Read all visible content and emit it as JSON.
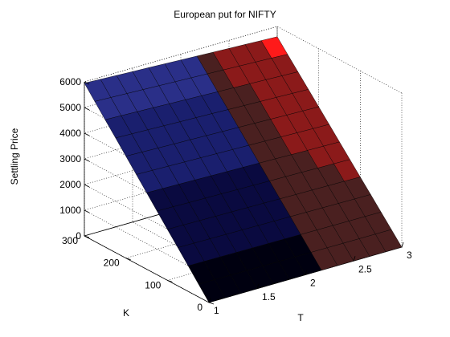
{
  "chart_data": {
    "type": "surface3d",
    "title": "European put for NIFTY",
    "zlabel": "Settling Price",
    "xlabel": "T",
    "ylabel": "K",
    "T_ticks": [
      "1",
      "1.5",
      "2",
      "2.5",
      "3"
    ],
    "K_ticks": [
      "0",
      "100",
      "200",
      "300"
    ],
    "Z_ticks": [
      "0",
      "1000",
      "2000",
      "3000",
      "4000",
      "5000",
      "6000"
    ],
    "T_range": [
      1,
      3
    ],
    "K_range": [
      0,
      300
    ],
    "Z_range": [
      0,
      6000
    ],
    "surface": {
      "ridge_K": 300,
      "ridge_value_at_T1": 5950,
      "ridge_value_at_T3": 5600,
      "value_at_K0": 0,
      "T_steps": 12,
      "K_steps": 12,
      "colormap": [
        "#000010",
        "#0a0a40",
        "#1a1f6e",
        "#2a2f88",
        "#4a2020",
        "#8b1a1a",
        "#ff1a1a"
      ]
    },
    "grid": true,
    "box": true
  }
}
